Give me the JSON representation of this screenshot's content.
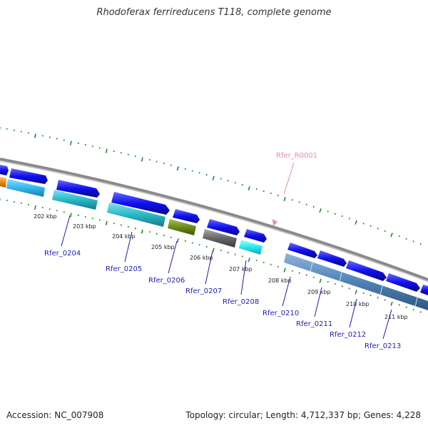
{
  "title": "Rhodoferax ferrireducens T118, complete genome",
  "footer": {
    "accession": "Accession: NC_007908",
    "summary": "Topology: circular; Length: 4,712,337 bp; Genes: 4,228"
  },
  "colors": {
    "backbone": "#888888",
    "tick": "#2a8a2a",
    "gene_label": "#1e1eb4",
    "rna_label": "#e58ab8",
    "cds": "#1010ee",
    "cyan": "#2ab8c8",
    "light_blue": "#33b8ee",
    "steel_blue": "#4f82b5",
    "olive": "#6a8a1c",
    "gray": "#666666",
    "aqua": "#22eaee",
    "orange": "#ee8a10",
    "pink": "#e58ab8"
  },
  "scale_labels": [
    "202 kbp",
    "203 kbp",
    "204 kbp",
    "205 kbp",
    "206 kbp",
    "207 kbp",
    "208 kbp",
    "209 kbp",
    "210 kbp",
    "211 kbp"
  ],
  "gene_labels": [
    "Rfer_0204",
    "Rfer_0205",
    "Rfer_0206",
    "Rfer_0207",
    "Rfer_0208",
    "Rfer_0210",
    "Rfer_0211",
    "Rfer_0212",
    "Rfer_0213"
  ],
  "rna_label": "Rfer_R0001"
}
